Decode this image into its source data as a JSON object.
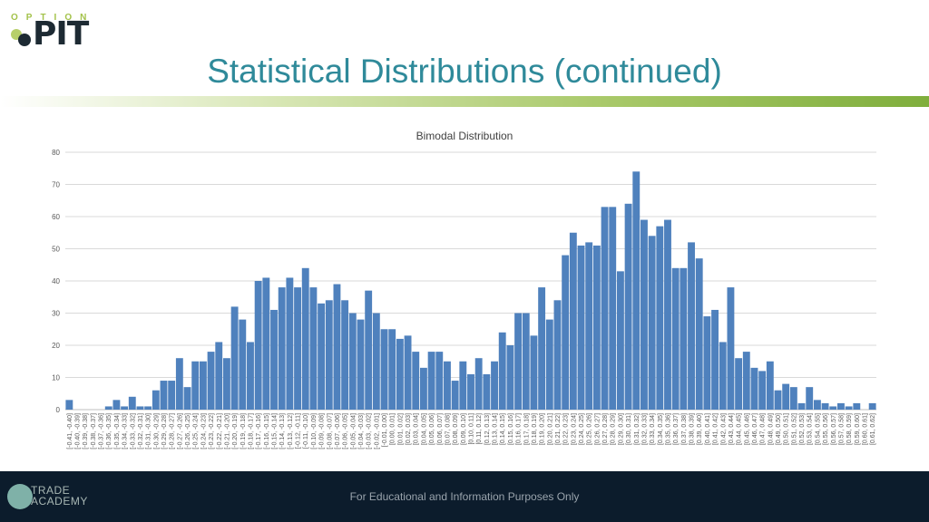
{
  "logo": {
    "top_text": "OPTION",
    "main_text": "PIT"
  },
  "slide_title": "Statistical Distributions (continued)",
  "footer": {
    "text": "For Educational and Information Purposes Only",
    "logo_line1": "TRADE",
    "logo_line2": "ACADEMY"
  },
  "colors": {
    "bar": "#4f81bd",
    "title": "#2f8a9a",
    "gridline": "#d9d9d9",
    "footer_bg": "#0c1c2c"
  },
  "chart_data": {
    "type": "bar",
    "title": "Bimodal Distribution",
    "xlabel": "",
    "ylabel": "",
    "ylim": [
      0,
      80
    ],
    "yticks": [
      0,
      10,
      20,
      30,
      40,
      50,
      60,
      70,
      80
    ],
    "grid": true,
    "legend": "none",
    "categories": [
      "[-0.41, -0.40]",
      "[-0.40, -0.39]",
      "[-0.39, -0.38]",
      "[-0.38, -0.37]",
      "[-0.37, -0.36]",
      "[-0.36, -0.35]",
      "[-0.35, -0.34]",
      "[-0.34, -0.33]",
      "[-0.33, -0.32]",
      "[-0.32, -0.31]",
      "[-0.31, -0.30]",
      "[-0.30, -0.29]",
      "[-0.29, -0.28]",
      "[-0.28, -0.27]",
      "[-0.27, -0.26]",
      "[-0.26, -0.25]",
      "[-0.25, -0.24]",
      "[-0.24, -0.23]",
      "[-0.23, -0.22]",
      "[-0.22, -0.21]",
      "[-0.21, -0.20]",
      "[-0.20, -0.19]",
      "[-0.19, -0.18]",
      "[-0.18, -0.17]",
      "[-0.17, -0.16]",
      "[-0.16, -0.15]",
      "[-0.15, -0.14]",
      "[-0.14, -0.13]",
      "[-0.13, -0.12]",
      "[-0.12, -0.11]",
      "[-0.11, -0.10]",
      "[-0.10, -0.09]",
      "[-0.09, -0.08]",
      "[-0.08, -0.07]",
      "[-0.07, -0.06]",
      "[-0.06, -0.05]",
      "[-0.05, -0.04]",
      "[-0.04, -0.03]",
      "[-0.03, -0.02]",
      "[-0.02, -0.01]",
      "[-0.01, 0.00]",
      "[0.00, 0.01]",
      "[0.01, 0.02]",
      "[0.02, 0.03]",
      "[0.03, 0.04]",
      "[0.04, 0.05]",
      "[0.05, 0.06]",
      "[0.06, 0.07]",
      "[0.07, 0.08]",
      "[0.08, 0.09]",
      "[0.09, 0.10]",
      "[0.10, 0.11]",
      "[0.11, 0.12]",
      "[0.12, 0.13]",
      "[0.13, 0.14]",
      "[0.14, 0.15]",
      "[0.15, 0.16]",
      "[0.16, 0.17]",
      "[0.17, 0.18]",
      "[0.18, 0.19]",
      "[0.19, 0.20]",
      "[0.20, 0.21]",
      "[0.21, 0.22]",
      "[0.22, 0.23]",
      "[0.23, 0.24]",
      "[0.24, 0.25]",
      "[0.25, 0.26]",
      "[0.26, 0.27]",
      "[0.27, 0.28]",
      "[0.28, 0.29]",
      "[0.29, 0.30]",
      "[0.30, 0.31]",
      "[0.31, 0.32]",
      "[0.32, 0.33]",
      "[0.33, 0.34]",
      "[0.34, 0.35]",
      "[0.35, 0.36]",
      "[0.36, 0.37]",
      "[0.37, 0.38]",
      "[0.38, 0.39]",
      "[0.39, 0.40]",
      "[0.40, 0.41]",
      "[0.41, 0.42]",
      "[0.42, 0.43]",
      "[0.43, 0.44]",
      "[0.44, 0.45]",
      "[0.45, 0.46]",
      "[0.46, 0.47]",
      "[0.47, 0.48]",
      "[0.48, 0.49]",
      "[0.49, 0.50]",
      "[0.50, 0.51]",
      "[0.51, 0.52]",
      "[0.52, 0.53]",
      "[0.53, 0.54]",
      "[0.54, 0.55]",
      "[0.55, 0.56]",
      "[0.56, 0.57]",
      "[0.57, 0.58]",
      "[0.58, 0.59]",
      "[0.59, 0.60]",
      "[0.60, 0.61]",
      "[0.61, 0.62]"
    ],
    "values": [
      3,
      0,
      0,
      0,
      0,
      1,
      3,
      1,
      4,
      1,
      1,
      6,
      9,
      9,
      16,
      7,
      15,
      15,
      18,
      21,
      16,
      32,
      28,
      21,
      40,
      41,
      31,
      38,
      41,
      38,
      44,
      38,
      33,
      34,
      39,
      34,
      30,
      28,
      37,
      30,
      25,
      25,
      22,
      23,
      18,
      13,
      18,
      18,
      15,
      9,
      15,
      11,
      16,
      11,
      15,
      24,
      20,
      30,
      30,
      23,
      38,
      28,
      34,
      48,
      55,
      51,
      52,
      51,
      63,
      63,
      43,
      64,
      74,
      59,
      54,
      57,
      59,
      44,
      44,
      52,
      47,
      29,
      31,
      21,
      38,
      16,
      18,
      13,
      12,
      15,
      6,
      8,
      7,
      2,
      7,
      3,
      2,
      1,
      2,
      1,
      2,
      0,
      2
    ]
  }
}
